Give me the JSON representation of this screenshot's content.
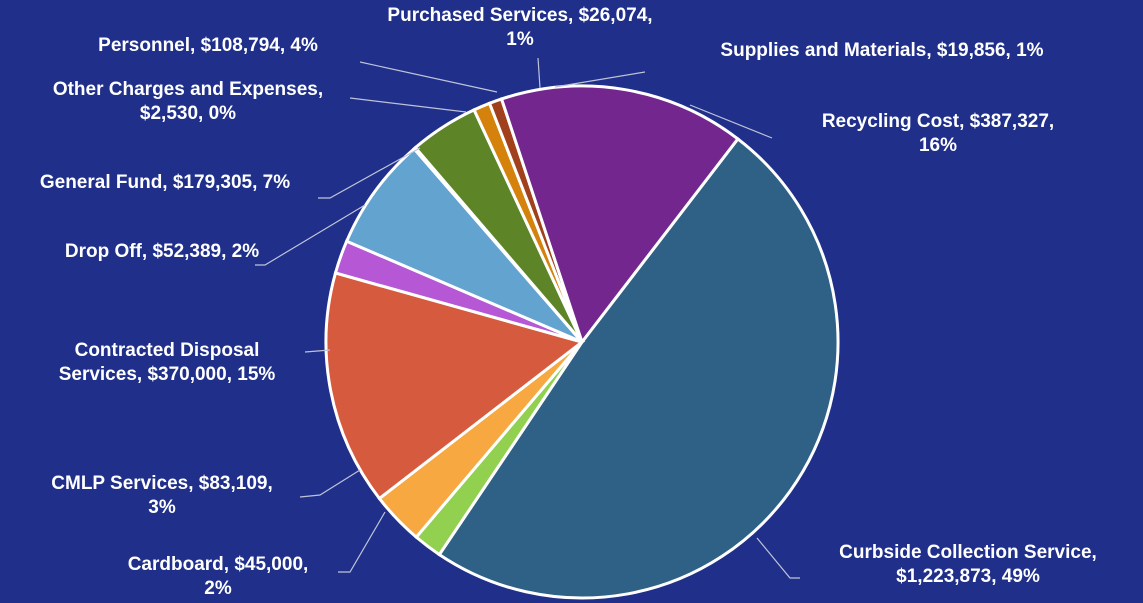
{
  "chart_data": {
    "type": "pie",
    "background": "#1f2f8a",
    "slices": [
      {
        "category": "Curbside Collection Service",
        "value": 1223873,
        "percent": "49%",
        "color": "#2e6185",
        "label_lines": [
          "Curbside Collection Service,",
          "$1,223,873, 49%"
        ]
      },
      {
        "category": "Cardboard",
        "value": 45000,
        "percent": "2%",
        "color": "#92d050",
        "label_lines": [
          "Cardboard, $45,000,",
          "2%"
        ]
      },
      {
        "category": "CMLP Services",
        "value": 83109,
        "percent": "3%",
        "color": "#f7a840",
        "label_lines": [
          "CMLP Services, $83,109,",
          "3%"
        ]
      },
      {
        "category": "Contracted Disposal Services",
        "value": 370000,
        "percent": "15%",
        "color": "#d65a3e",
        "label_lines": [
          "Contracted Disposal",
          "Services, $370,000, 15%"
        ]
      },
      {
        "category": "Drop Off",
        "value": 52389,
        "percent": "2%",
        "color": "#b657d6",
        "label_lines": [
          "Drop Off, $52,389, 2%"
        ]
      },
      {
        "category": "General Fund",
        "value": 179305,
        "percent": "7%",
        "color": "#62a3cf",
        "label_lines": [
          "General Fund, $179,305, 7%"
        ]
      },
      {
        "category": "Other Charges and Expenses",
        "value": 2530,
        "percent": "0%",
        "color": "#c9c9c9",
        "label_lines": [
          "Other Charges and Expenses,",
          "$2,530, 0%"
        ]
      },
      {
        "category": "Personnel",
        "value": 108794,
        "percent": "4%",
        "color": "#5d8527",
        "label_lines": [
          "Personnel, $108,794, 4%"
        ]
      },
      {
        "category": "Purchased Services",
        "value": 26074,
        "percent": "1%",
        "color": "#d4820c",
        "label_lines": [
          "Purchased Services, $26,074,",
          "1%"
        ]
      },
      {
        "category": "Supplies and Materials",
        "value": 19856,
        "percent": "1%",
        "color": "#a0401c",
        "label_lines": [
          "Supplies and Materials, $19,856, 1%"
        ]
      },
      {
        "category": "Recycling Cost",
        "value": 387327,
        "percent": "16%",
        "color": "#74268f",
        "label_lines": [
          "Recycling Cost, $387,327,",
          "16%"
        ]
      }
    ]
  }
}
